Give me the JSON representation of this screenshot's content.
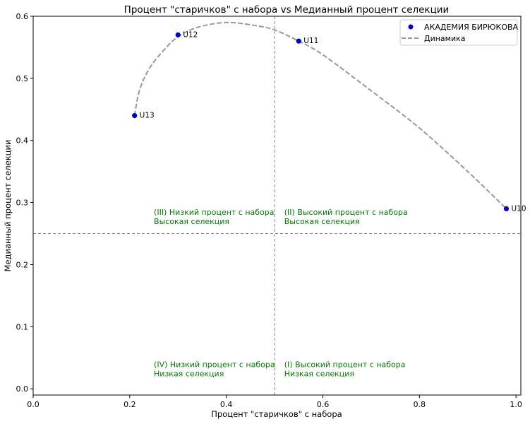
{
  "chart_data": {
    "type": "scatter",
    "title": "Процент \"старичков\" с набора vs Медианный процент селекции",
    "xlabel": "Процент \"старичков\" с набора",
    "ylabel": "Медианный процент селекции",
    "xlim": [
      0.0,
      1.01
    ],
    "ylim": [
      -0.01,
      0.6
    ],
    "xticks": [
      "0.0",
      "0.2",
      "0.4",
      "0.6",
      "0.8",
      "1.0"
    ],
    "yticks": [
      "0.0",
      "0.1",
      "0.2",
      "0.3",
      "0.4",
      "0.5",
      "0.6"
    ],
    "grid": false,
    "legend_position": "top-right",
    "series": [
      {
        "name": "АКАДЕМИЯ БИРЮКОВА",
        "color": "#0000cc",
        "points": [
          {
            "label": "U13",
            "x": 0.21,
            "y": 0.44
          },
          {
            "label": "U12",
            "x": 0.3,
            "y": 0.57
          },
          {
            "label": "U11",
            "x": 0.55,
            "y": 0.56
          },
          {
            "label": "U10",
            "x": 0.98,
            "y": 0.29
          }
        ]
      },
      {
        "name": "Динамика",
        "color": "#999999",
        "style": "dashed",
        "points": [
          {
            "x": 0.21,
            "y": 0.44
          },
          {
            "x": 0.22,
            "y": 0.48
          },
          {
            "x": 0.24,
            "y": 0.515
          },
          {
            "x": 0.27,
            "y": 0.545
          },
          {
            "x": 0.3,
            "y": 0.567
          },
          {
            "x": 0.34,
            "y": 0.582
          },
          {
            "x": 0.4,
            "y": 0.59
          },
          {
            "x": 0.46,
            "y": 0.585
          },
          {
            "x": 0.5,
            "y": 0.578
          },
          {
            "x": 0.55,
            "y": 0.56
          },
          {
            "x": 0.6,
            "y": 0.538
          },
          {
            "x": 0.7,
            "y": 0.48
          },
          {
            "x": 0.8,
            "y": 0.42
          },
          {
            "x": 0.9,
            "y": 0.35
          },
          {
            "x": 0.98,
            "y": 0.29
          }
        ]
      }
    ],
    "reference_lines": [
      {
        "axis": "x",
        "value": 0.5,
        "color": "#888888",
        "style": "dashed"
      },
      {
        "axis": "y",
        "value": 0.25,
        "color": "#888888",
        "style": "dashed"
      }
    ],
    "annotations": [
      {
        "lines": [
          "(III) Низкий процент с набора",
          "Высокая селекция"
        ],
        "x": 0.25,
        "y": 0.28,
        "color": "#008000"
      },
      {
        "lines": [
          "(II) Высокий процент с набора",
          "Высокая селекция"
        ],
        "x": 0.52,
        "y": 0.28,
        "color": "#008000"
      },
      {
        "lines": [
          "(IV) Низкий процент с набора",
          "Низкая селекция"
        ],
        "x": 0.25,
        "y": 0.035,
        "color": "#008000"
      },
      {
        "lines": [
          "(I) Высокий процент с набора",
          "Низкая селекция"
        ],
        "x": 0.52,
        "y": 0.035,
        "color": "#008000"
      }
    ]
  }
}
